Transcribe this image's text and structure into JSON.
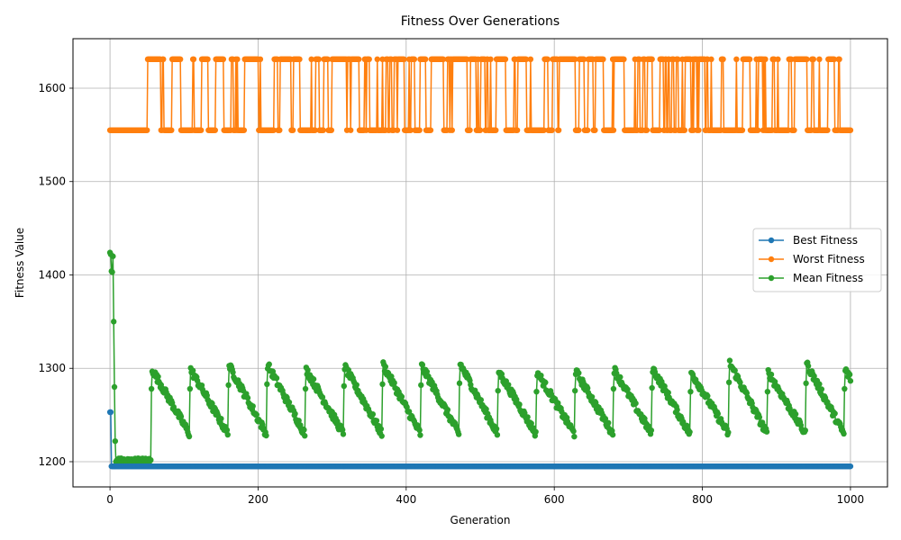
{
  "chart_data": {
    "type": "line",
    "title": "Fitness Over Generations",
    "xlabel": "Generation",
    "ylabel": "Fitness Value",
    "xlim": [
      -50,
      1050
    ],
    "ylim": [
      1173,
      1653
    ],
    "x_ticks": [
      0,
      200,
      400,
      600,
      800,
      1000
    ],
    "y_ticks": [
      1200,
      1300,
      1400,
      1500,
      1600
    ],
    "grid": true,
    "legend_position": "center-right",
    "generations": 1001,
    "series": [
      {
        "name": "Best Fitness",
        "color": "#1f77b4",
        "pattern": "constant_after_start",
        "start_values": [
          1253,
          1253
        ],
        "steady_value": 1195
      },
      {
        "name": "Worst Fitness",
        "color": "#ff7f0e",
        "pattern": "oscillating_two_levels",
        "levels": [
          1555,
          1631
        ]
      },
      {
        "name": "Mean Fitness",
        "color": "#2ca02c",
        "pattern": "sawtooth",
        "start_values": [
          1424,
          1422,
          1404,
          1403,
          1420,
          1350,
          1280,
          1222,
          1200
        ],
        "early_plateau": 1201,
        "cycle_peaks": [
          1300,
          1300,
          1304,
          1305,
          1300,
          1303,
          1305,
          1304,
          1306,
          1298,
          1297,
          1298,
          1300,
          1301,
          1297,
          1307,
          1297,
          1306,
          1300
        ],
        "cycle_low": 1230,
        "cycle_length": 52
      }
    ]
  }
}
